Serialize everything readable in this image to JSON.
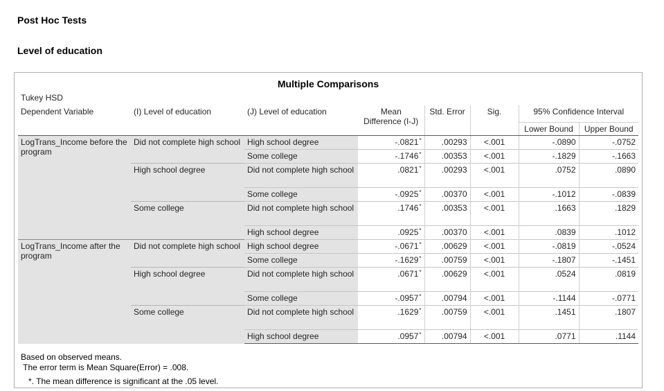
{
  "headings": {
    "post_hoc": "Post Hoc Tests",
    "factor": "Level of education"
  },
  "table": {
    "title": "Multiple Comparisons",
    "method": "Tukey HSD",
    "headers": {
      "dependent": "Dependent Variable",
      "i_level": "(I) Level of education",
      "j_level": "(J) Level of education",
      "mean_diff_1": "Mean",
      "mean_diff_2": "Difference (I-J)",
      "std_error": "Std. Error",
      "sig": "Sig.",
      "ci": "95% Confidence Interval",
      "lower": "Lower Bound",
      "upper": "Upper Bound"
    },
    "star": "*",
    "rows": [
      {
        "dv": "LogTrans_Income before the program",
        "i": "Did not complete high school",
        "j": "High school degree",
        "md": "-.0821",
        "se": ".00293",
        "sig": "<.001",
        "lo": "-.0890",
        "up": "-.0752"
      },
      {
        "dv": "",
        "i": "",
        "j": "Some college",
        "md": "-.1746",
        "se": ".00353",
        "sig": "<.001",
        "lo": "-.1829",
        "up": "-.1663"
      },
      {
        "dv": "",
        "i": "High school degree",
        "j": "Did not complete high school",
        "md": ".0821",
        "se": ".00293",
        "sig": "<.001",
        "lo": ".0752",
        "up": ".0890"
      },
      {
        "dv": "",
        "i": "",
        "j": "Some college",
        "md": "-.0925",
        "se": ".00370",
        "sig": "<.001",
        "lo": "-.1012",
        "up": "-.0839"
      },
      {
        "dv": "",
        "i": "Some college",
        "j": "Did not complete high school",
        "md": ".1746",
        "se": ".00353",
        "sig": "<.001",
        "lo": ".1663",
        "up": ".1829"
      },
      {
        "dv": "",
        "i": "",
        "j": "High school degree",
        "md": ".0925",
        "se": ".00370",
        "sig": "<.001",
        "lo": ".0839",
        "up": ".1012"
      },
      {
        "dv": "LogTrans_Income after the program",
        "i": "Did not complete high school",
        "j": "High school degree",
        "md": "-.0671",
        "se": ".00629",
        "sig": "<.001",
        "lo": "-.0819",
        "up": "-.0524"
      },
      {
        "dv": "",
        "i": "",
        "j": "Some college",
        "md": "-.1629",
        "se": ".00759",
        "sig": "<.001",
        "lo": "-.1807",
        "up": "-.1451"
      },
      {
        "dv": "",
        "i": "High school degree",
        "j": "Did not complete high school",
        "md": ".0671",
        "se": ".00629",
        "sig": "<.001",
        "lo": ".0524",
        "up": ".0819"
      },
      {
        "dv": "",
        "i": "",
        "j": "Some college",
        "md": "-.0957",
        "se": ".00794",
        "sig": "<.001",
        "lo": "-.1144",
        "up": "-.0771"
      },
      {
        "dv": "",
        "i": "Some college",
        "j": "Did not complete high school",
        "md": ".1629",
        "se": ".00759",
        "sig": "<.001",
        "lo": ".1451",
        "up": ".1807"
      },
      {
        "dv": "",
        "i": "",
        "j": "High school degree",
        "md": ".0957",
        "se": ".00794",
        "sig": "<.001",
        "lo": ".0771",
        "up": ".1144"
      }
    ],
    "footnotes": [
      "Based on observed means.",
      " The error term is Mean Square(Error) = .008.",
      "*. The mean difference is significant at the .05 level."
    ]
  }
}
